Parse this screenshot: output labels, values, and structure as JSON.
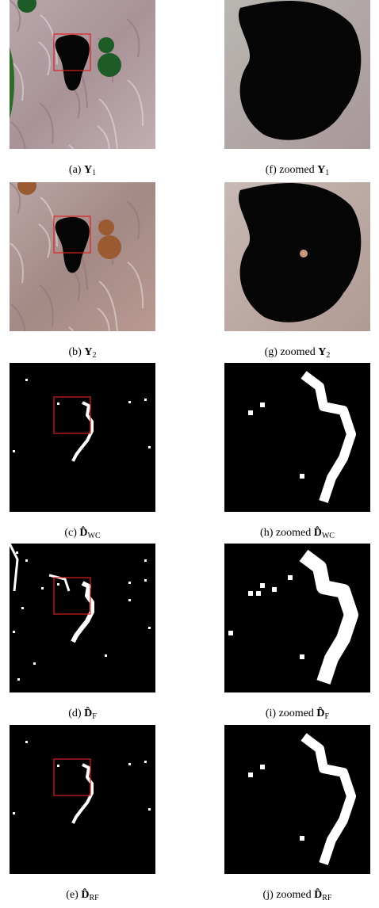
{
  "panels": [
    {
      "tag": "(a)",
      "symbol": "Y",
      "sub": "1"
    },
    {
      "tag": "(b)",
      "symbol": "Y",
      "sub": "2"
    },
    {
      "tag": "(c)",
      "symbol": "D̂",
      "sub": "WC"
    },
    {
      "tag": "(d)",
      "symbol": "D̂",
      "sub": "F"
    },
    {
      "tag": "(e)",
      "symbol": "D̂",
      "sub": "RF"
    },
    {
      "tag": "(f)",
      "prefix": "zoomed",
      "symbol": "Y",
      "sub": "1"
    },
    {
      "tag": "(g)",
      "prefix": "zoomed",
      "symbol": "Y",
      "sub": "2"
    },
    {
      "tag": "(h)",
      "prefix": "zoomed",
      "symbol": "D̂",
      "sub": "WC"
    },
    {
      "tag": "(i)",
      "prefix": "zoomed",
      "symbol": "D̂",
      "sub": "F"
    },
    {
      "tag": "(j)",
      "prefix": "zoomed",
      "symbol": "D̂",
      "sub": "RF"
    }
  ]
}
